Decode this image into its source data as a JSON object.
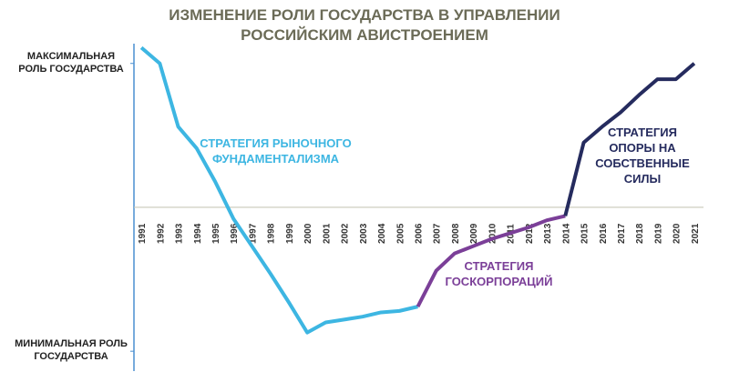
{
  "chart_data": {
    "type": "line",
    "title": "ИЗМЕНЕНИЕ РОЛИ ГОСУДАРСТВА В УПРАВЛЕНИИ РОССИЙСКИМ АВИСТРОЕНИЕМ",
    "categories": [
      "1991",
      "1992",
      "1993",
      "1994",
      "1995",
      "1996",
      "1997",
      "1998",
      "1999",
      "2000",
      "2001",
      "2002",
      "2003",
      "2004",
      "2005",
      "2006",
      "2007",
      "2008",
      "2009",
      "2010",
      "2011",
      "2012",
      "2013",
      "2014",
      "2015",
      "2016",
      "2017",
      "2018",
      "2019",
      "2020",
      "2021"
    ],
    "series": [
      {
        "name": "СТРАТЕГИЯ РЫНОЧНОГО ФУНДАМЕНТАЛИЗМА",
        "color": "#3db6e2",
        "values": [
          111,
          100,
          56,
          41,
          18,
          -8,
          -27,
          -46,
          -66,
          -87,
          -80,
          -78,
          -76,
          -73,
          -72,
          -69,
          null,
          null,
          null,
          null,
          null,
          null,
          null,
          null,
          null,
          null,
          null,
          null,
          null,
          null,
          null
        ]
      },
      {
        "name": "СТРАТЕГИЯ ГОСКОРПОРАЦИЙ",
        "color": "#7b3f98",
        "values": [
          null,
          null,
          null,
          null,
          null,
          null,
          null,
          null,
          null,
          null,
          null,
          null,
          null,
          null,
          null,
          -69,
          -44,
          -32,
          -27,
          -22,
          -18,
          -14,
          -9,
          -6,
          null,
          null,
          null,
          null,
          null,
          null,
          null
        ]
      },
      {
        "name": "СТРАТЕГИЯ ОПОРЫ НА СОБСТВЕННЫЕ СИЛЫ",
        "color": "#252b5e",
        "values": [
          null,
          null,
          null,
          null,
          null,
          null,
          null,
          null,
          null,
          null,
          null,
          null,
          null,
          null,
          null,
          null,
          null,
          null,
          null,
          null,
          null,
          null,
          null,
          -6,
          45,
          56,
          66,
          78,
          89,
          89,
          100
        ]
      }
    ],
    "ylim": [
      -110,
      115
    ],
    "yticks": [
      {
        "value": -100,
        "label": "МИНИМАЛЬНАЯ РОЛЬ ГОСУДАРСТВА"
      },
      {
        "value": 100,
        "label": "МАКСИМАЛЬНАЯ РОЛЬ ГОСУДАРСТВА"
      }
    ]
  }
}
